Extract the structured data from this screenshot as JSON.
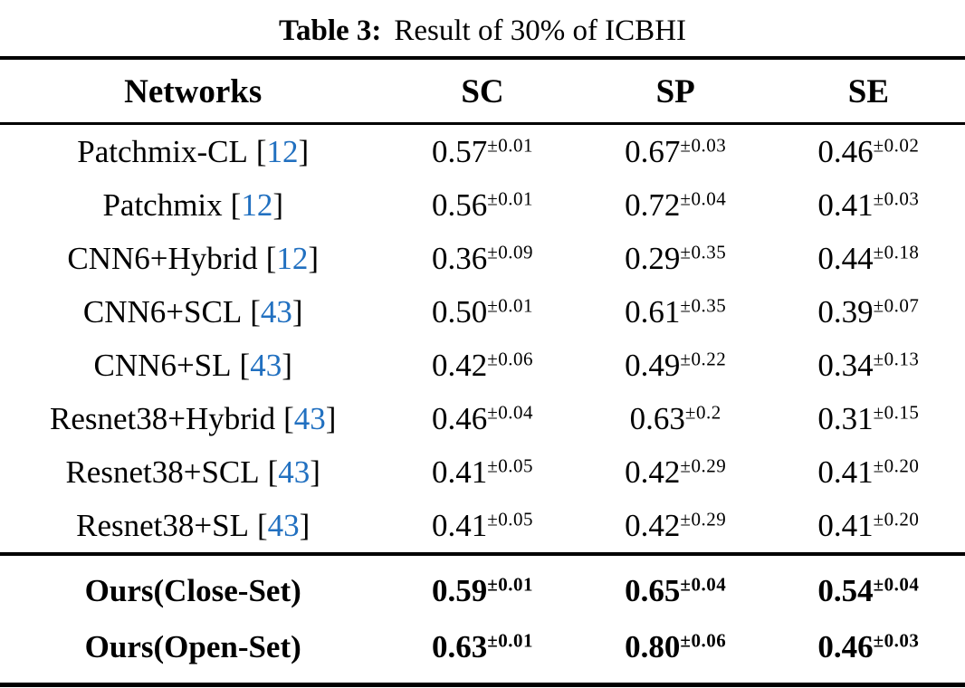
{
  "caption": {
    "label": "Table 3:",
    "text": "Result of 30% of ICBHI"
  },
  "symbols": {
    "bracket_open": "[",
    "bracket_close": "]"
  },
  "colors": {
    "citation_blue": "#2170c0",
    "text": "#000000",
    "background": "#ffffff"
  },
  "table": {
    "headers": {
      "networks": "Networks",
      "sc": "SC",
      "sp": "SP",
      "se": "SE"
    },
    "rows": [
      {
        "name": "Patchmix-CL",
        "ref": "12",
        "sc": "0.57",
        "sc_err": "±0.01",
        "sp": "0.67",
        "sp_err": "±0.03",
        "se": "0.46",
        "se_err": "±0.02"
      },
      {
        "name": "Patchmix",
        "ref": "12",
        "sc": "0.56",
        "sc_err": "±0.01",
        "sp": "0.72",
        "sp_err": "±0.04",
        "se": "0.41",
        "se_err": "±0.03"
      },
      {
        "name": "CNN6+Hybrid",
        "ref": "12",
        "sc": "0.36",
        "sc_err": "±0.09",
        "sp": "0.29",
        "sp_err": "±0.35",
        "se": "0.44",
        "se_err": "±0.18"
      },
      {
        "name": "CNN6+SCL",
        "ref": "43",
        "sc": "0.50",
        "sc_err": "±0.01",
        "sp": "0.61",
        "sp_err": "±0.35",
        "se": "0.39",
        "se_err": "±0.07"
      },
      {
        "name": "CNN6+SL",
        "ref": "43",
        "sc": "0.42",
        "sc_err": "±0.06",
        "sp": "0.49",
        "sp_err": "±0.22",
        "se": "0.34",
        "se_err": "±0.13"
      },
      {
        "name": "Resnet38+Hybrid",
        "ref": "43",
        "sc": "0.46",
        "sc_err": "±0.04",
        "sp": "0.63",
        "sp_err": "±0.2",
        "se": "0.31",
        "se_err": "±0.15"
      },
      {
        "name": "Resnet38+SCL",
        "ref": "43",
        "sc": "0.41",
        "sc_err": "±0.05",
        "sp": "0.42",
        "sp_err": "±0.29",
        "se": "0.41",
        "se_err": "±0.20"
      },
      {
        "name": "Resnet38+SL",
        "ref": "43",
        "sc": "0.41",
        "sc_err": "±0.05",
        "sp": "0.42",
        "sp_err": "±0.29",
        "se": "0.41",
        "se_err": "±0.20"
      }
    ],
    "ours_rows": [
      {
        "name": "Ours(Close-Set)",
        "sc": "0.59",
        "sc_err": "±0.01",
        "sp": "0.65",
        "sp_err": "±0.04",
        "se": "0.54",
        "se_err": "±0.04"
      },
      {
        "name": "Ours(Open-Set)",
        "sc": "0.63",
        "sc_err": "±0.01",
        "sp": "0.80",
        "sp_err": "±0.06",
        "se": "0.46",
        "se_err": "±0.03"
      }
    ]
  }
}
